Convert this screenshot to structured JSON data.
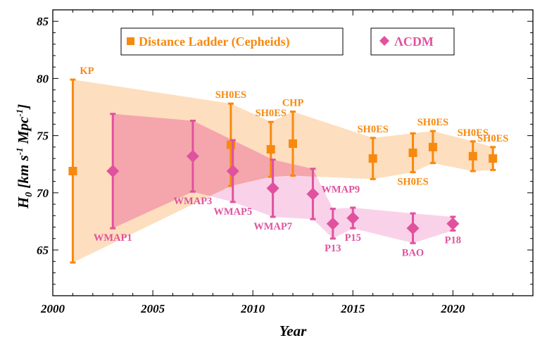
{
  "chart_data": {
    "type": "scatter",
    "xlabel": "Year",
    "ylabel": "H0  [km s-1 Mpc-1]",
    "ylabel_parts": {
      "main": "H",
      "sub": "0",
      "units_prefix": "[km s",
      "exp1": "-1",
      "units_mid": " Mpc",
      "exp2": "-1",
      "units_suffix": "]"
    },
    "xlim": [
      2000,
      2024
    ],
    "ylim": [
      61,
      86
    ],
    "x_ticks": [
      2000,
      2005,
      2010,
      2015,
      2020
    ],
    "y_ticks": [
      65,
      70,
      75,
      80,
      85
    ],
    "grid": false,
    "legend_placement": "top",
    "series": [
      {
        "name": "Distance Ladder (Cepheids)",
        "color": "#f7890f",
        "band_color": "#fcd3a8",
        "marker": "square",
        "points": [
          {
            "x": 2001,
            "y": 71.9,
            "err": 8.0,
            "label": "KP",
            "label_pos": "above"
          },
          {
            "x": 2008.9,
            "y": 74.2,
            "err": 3.6,
            "label": "SH0ES",
            "label_pos": "above"
          },
          {
            "x": 2010.9,
            "y": 73.8,
            "err": 2.4,
            "label": "SH0ES",
            "label_pos": "above"
          },
          {
            "x": 2012,
            "y": 74.3,
            "err": 2.8,
            "label": "CHP",
            "label_pos": "above"
          },
          {
            "x": 2016,
            "y": 73.0,
            "err": 1.8,
            "label": "SH0ES",
            "label_pos": "above"
          },
          {
            "x": 2018,
            "y": 73.5,
            "err": 1.7,
            "label": "SH0ES",
            "label_pos": "below"
          },
          {
            "x": 2019,
            "y": 74.0,
            "err": 1.4,
            "label": "SH0ES",
            "label_pos": "above"
          },
          {
            "x": 2021,
            "y": 73.2,
            "err": 1.3,
            "label": "SH0ES",
            "label_pos": "above"
          },
          {
            "x": 2022,
            "y": 73.0,
            "err": 1.0,
            "label": "SH0ES",
            "label_pos": "above"
          }
        ]
      },
      {
        "name": "ΛCDM",
        "color": "#e0529e",
        "band_color": "#f7bfe0",
        "marker": "diamond",
        "points": [
          {
            "x": 2003,
            "y": 71.9,
            "err": 5.0,
            "label": "WMAP1",
            "label_pos": "below"
          },
          {
            "x": 2007,
            "y": 73.2,
            "err": 3.1,
            "label": "WMAP3",
            "label_pos": "below"
          },
          {
            "x": 2009,
            "y": 71.9,
            "err": 2.7,
            "label": "WMAP5",
            "label_pos": "below"
          },
          {
            "x": 2011,
            "y": 70.4,
            "err": 2.5,
            "label": "WMAP7",
            "label_pos": "below"
          },
          {
            "x": 2013,
            "y": 69.9,
            "err": 2.2,
            "label": "WMAP9",
            "label_pos": "right"
          },
          {
            "x": 2014,
            "y": 67.3,
            "err": 1.3,
            "label": "P13",
            "label_pos": "below"
          },
          {
            "x": 2015,
            "y": 67.8,
            "err": 0.9,
            "label": "P15",
            "label_pos": "below"
          },
          {
            "x": 2018,
            "y": 66.9,
            "err": 1.3,
            "label": "BAO",
            "label_pos": "below"
          },
          {
            "x": 2020,
            "y": 67.3,
            "err": 0.6,
            "label": "P18",
            "label_pos": "below"
          }
        ]
      }
    ],
    "legend": [
      {
        "label": "Distance Ladder (Cepheids)",
        "marker": "square",
        "color": "#f7890f"
      },
      {
        "label": "ΛCDM",
        "marker": "diamond",
        "color": "#e0529e"
      }
    ]
  }
}
